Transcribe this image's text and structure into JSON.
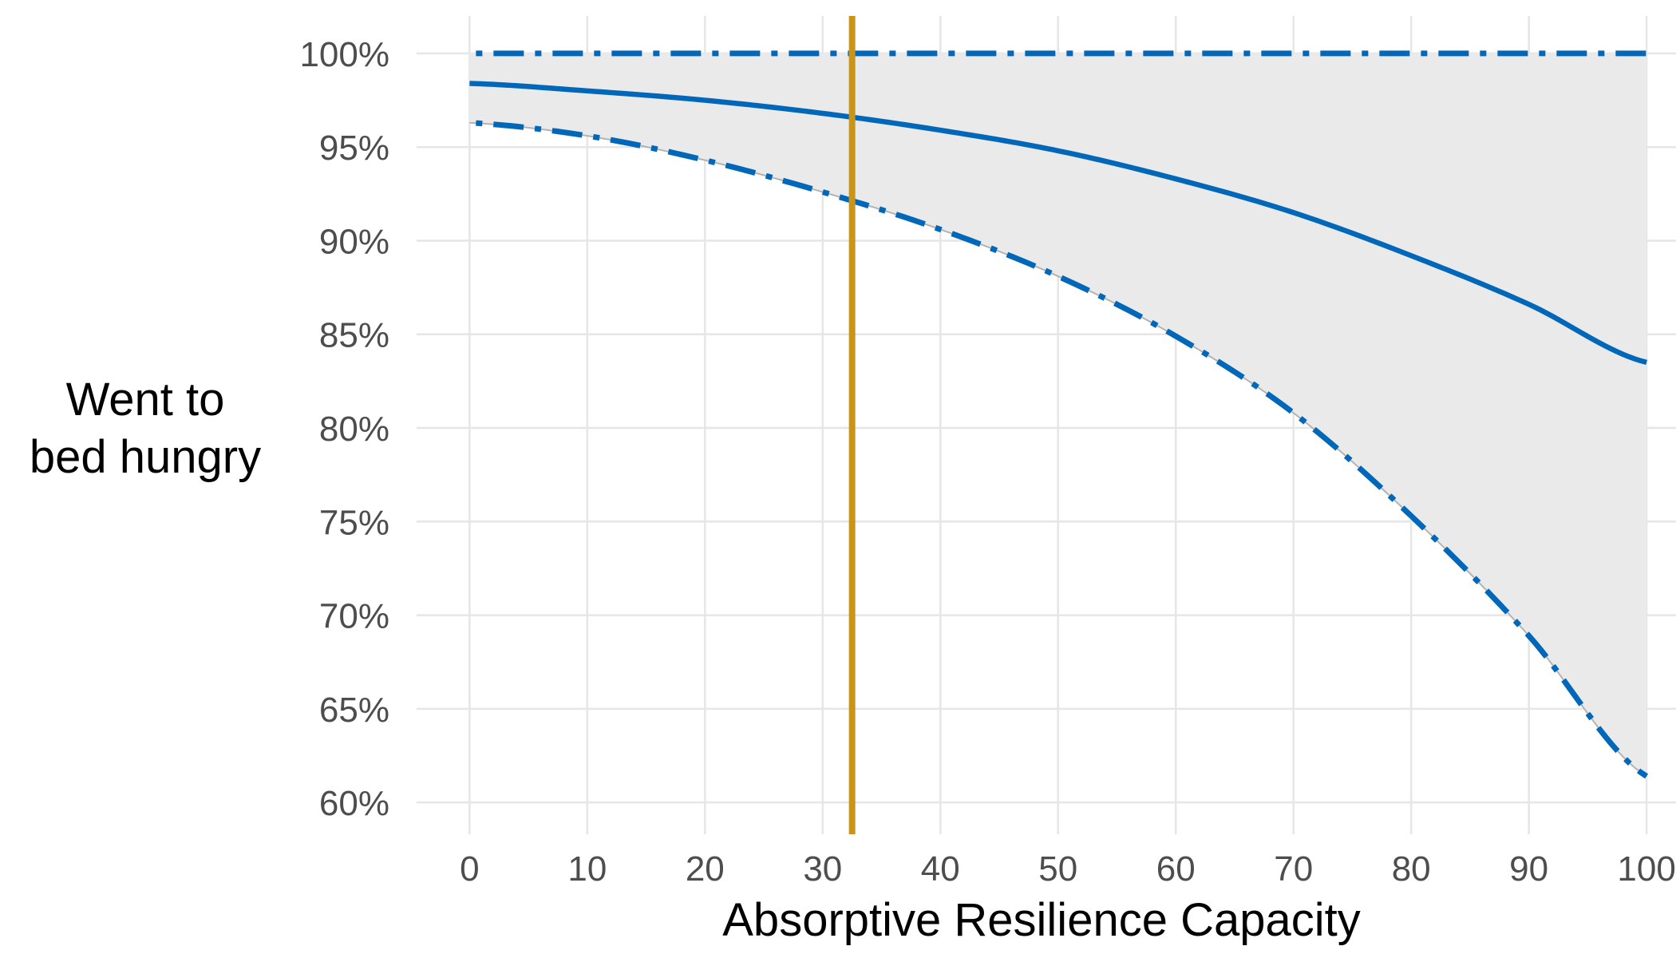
{
  "chart_data": {
    "type": "line",
    "title": "",
    "xlabel": "Absorptive Resilience Capacity",
    "ylabel": "Went to\nbed hungry",
    "xlim": [
      -4.5,
      102.5
    ],
    "ylim": [
      58.3,
      102
    ],
    "x_ticks": [
      0,
      10,
      20,
      30,
      40,
      50,
      60,
      70,
      80,
      90,
      100
    ],
    "y_ticks": [
      60,
      65,
      70,
      75,
      80,
      85,
      90,
      95,
      100
    ],
    "y_tick_labels": [
      "60%",
      "65%",
      "70%",
      "75%",
      "80%",
      "85%",
      "90%",
      "95%",
      "100%"
    ],
    "grid": true,
    "x": [
      0,
      10,
      20,
      30,
      40,
      50,
      60,
      70,
      80,
      90,
      100
    ],
    "series": [
      {
        "role": "estimate",
        "style": "solid",
        "values": [
          98.4,
          98.0,
          97.5,
          96.8,
          95.9,
          94.8,
          93.3,
          91.5,
          89.2,
          86.6,
          83.5
        ]
      },
      {
        "role": "upper-bound",
        "style": "dash-dot",
        "values": [
          100,
          100,
          100,
          100,
          100,
          100,
          100,
          100,
          100,
          100,
          100
        ]
      },
      {
        "role": "lower-bound",
        "style": "dash-dot",
        "values": [
          96.3,
          95.6,
          94.3,
          92.6,
          90.6,
          88.1,
          84.9,
          80.8,
          75.3,
          68.9,
          61.4
        ]
      }
    ],
    "confidence_band": {
      "lower": [
        96.3,
        95.6,
        94.3,
        92.6,
        90.6,
        88.1,
        84.9,
        80.8,
        75.3,
        68.9,
        61.4
      ],
      "upper": [
        100,
        100,
        100,
        100,
        100,
        100,
        100,
        100,
        100,
        100,
        100
      ]
    },
    "reference_line": {
      "orientation": "vertical",
      "x": 32.5
    },
    "colors": {
      "series": "#0067b9",
      "band_fill": "#ebeaea",
      "band_edge": "#b3b3b3",
      "reference_line": "#c8951a",
      "grid": "#e6e6e6",
      "tick_text": "#4d4d4d",
      "axis_title": "#000000"
    }
  }
}
